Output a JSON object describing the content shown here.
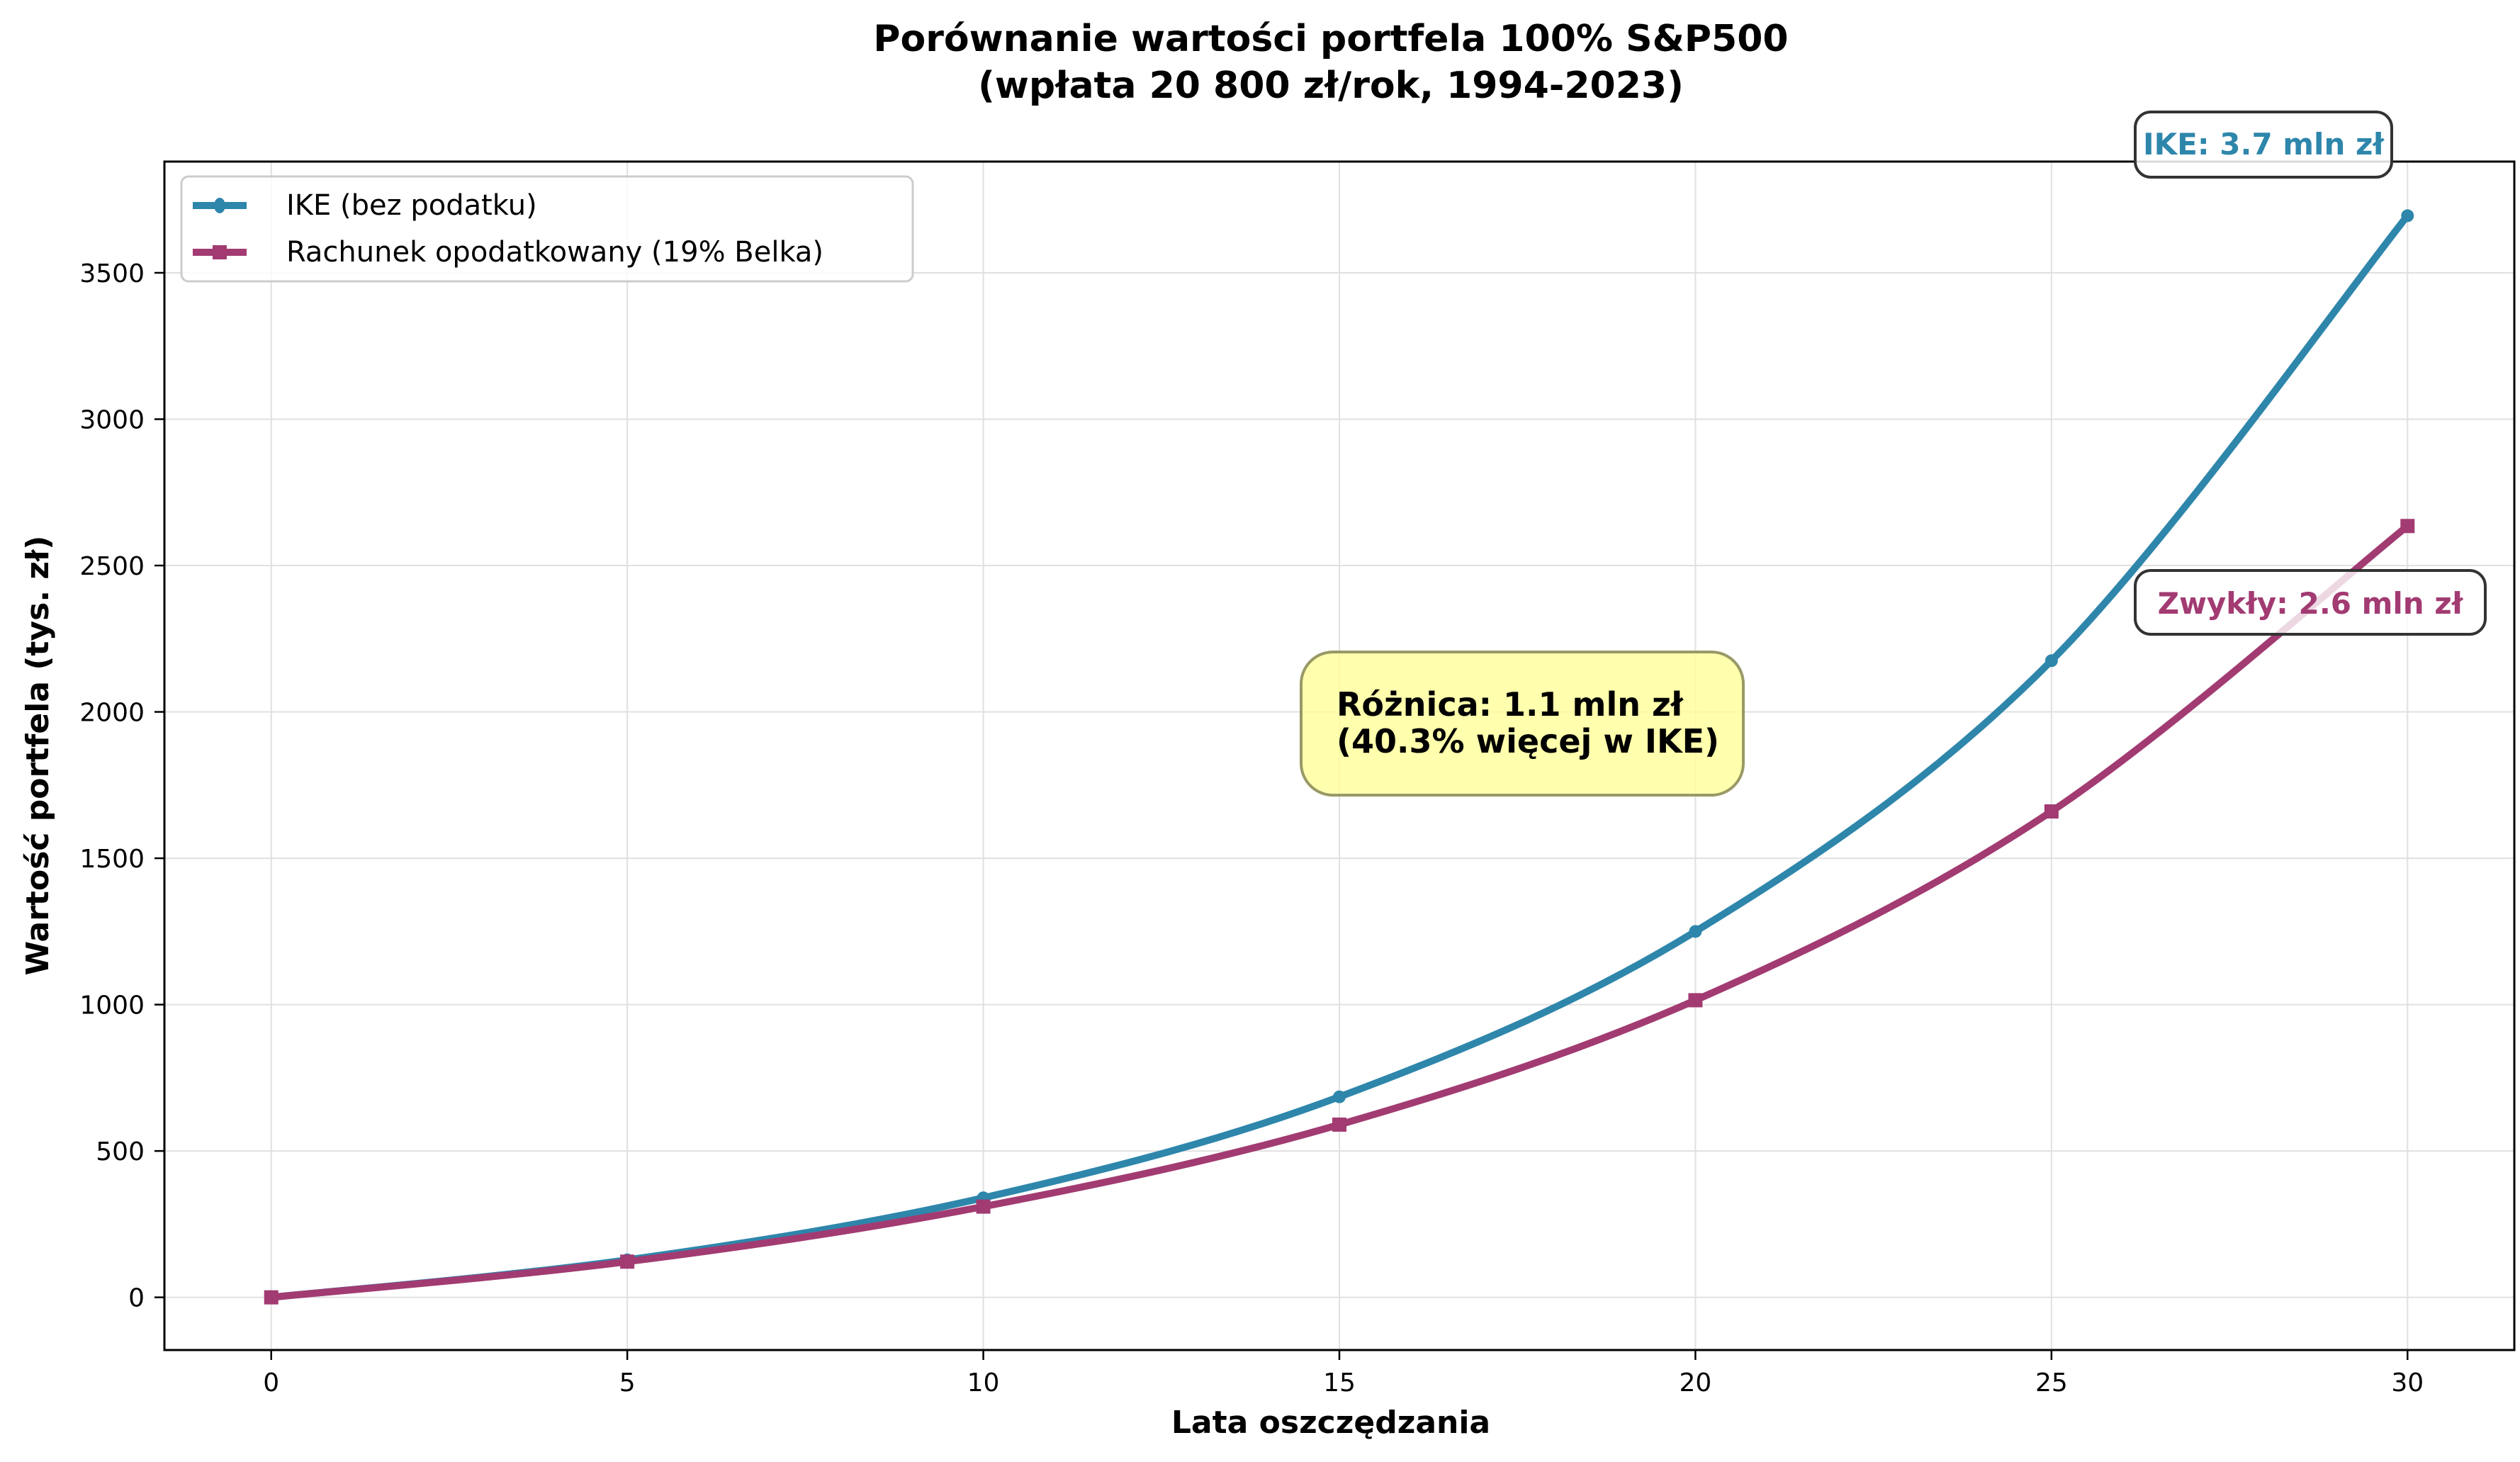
{
  "chart_data": {
    "type": "line",
    "title": "Porównanie wartości portfela 100% S&P500",
    "subtitle": "(wpłata 20 800 zł/rok, 1994-2023)",
    "xlabel": "Lata oszczędzania",
    "ylabel": "Wartość portfela (tys. zł)",
    "xlim": [
      -1.5,
      31.5
    ],
    "ylim": [
      -180,
      3880
    ],
    "x_ticks": [
      0,
      5,
      10,
      15,
      20,
      25,
      30
    ],
    "y_ticks": [
      0,
      500,
      1000,
      1500,
      2000,
      2500,
      3000,
      3500
    ],
    "grid": true,
    "legend_position": "upper left",
    "x": [
      0,
      5,
      10,
      15,
      20,
      25,
      30
    ],
    "series": [
      {
        "name": "IKE (bez podatku)",
        "color": "#2E86AB",
        "marker": "circle",
        "values": [
          0,
          128,
          340,
          685,
          1250,
          2175,
          3695
        ]
      },
      {
        "name": "Rachunek opodatkowany (19% Belka)",
        "color": "#A23B72",
        "marker": "square",
        "values": [
          0,
          122,
          310,
          590,
          1015,
          1660,
          2635
        ]
      }
    ],
    "annotations": [
      {
        "text": "IKE: 3.7 mln zł",
        "color": "#2E86AB",
        "anchor_x": 30,
        "anchor_y": 3695
      },
      {
        "text": "Zwykły: 2.6 mln zł",
        "color": "#A23B72",
        "anchor_x": 30,
        "anchor_y": 2635
      },
      {
        "line1": "Różnica: 1.1 mln zł",
        "line2": "(40.3% więcej w IKE)",
        "background": "#FFFF99",
        "anchor_x": 15,
        "anchor_y": 1900
      }
    ]
  },
  "labels": {
    "title_line1": "Porównanie wartości portfela 100% S&P500",
    "title_line2": "(wpłata 20 800 zł/rok, 1994-2023)",
    "xlabel": "Lata oszczędzania",
    "ylabel": "Wartość portfela (tys. zł)",
    "legend_ike": "IKE (bez podatku)",
    "legend_taxed": "Rachunek opodatkowany (19% Belka)",
    "annot_ike": "IKE: 3.7 mln zł",
    "annot_taxed": "Zwykły: 2.6 mln zł",
    "diff_line1": "Różnica: 1.1 mln zł",
    "diff_line2": "(40.3% więcej w IKE)"
  }
}
